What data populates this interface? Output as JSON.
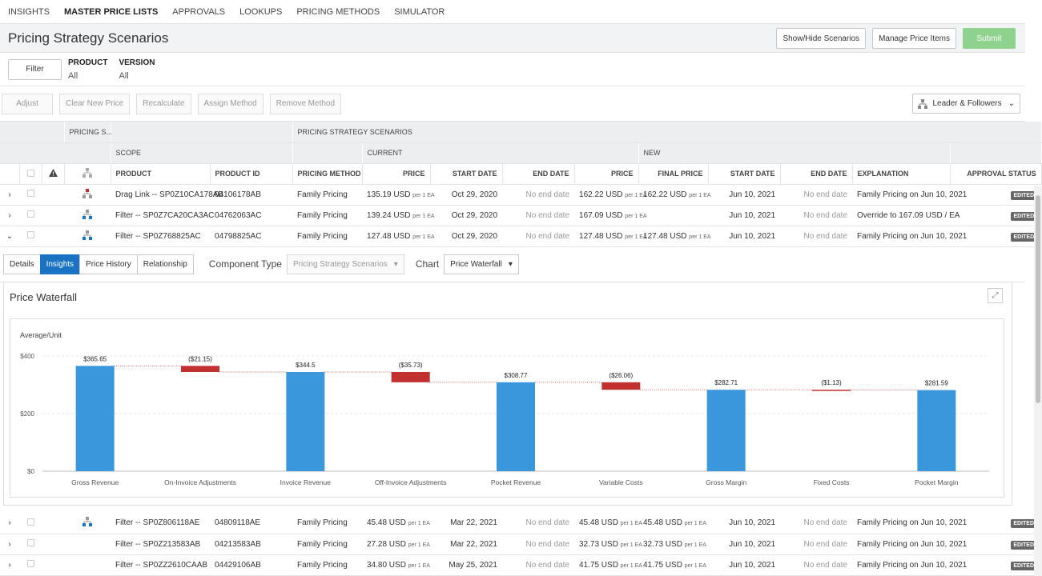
{
  "nav": [
    "INSIGHTS",
    "MASTER PRICE LISTS",
    "APPROVALS",
    "LOOKUPS",
    "PRICING METHODS",
    "SIMULATOR"
  ],
  "page_title": "Pricing Strategy Scenarios",
  "actions": {
    "show_hide": "Show/Hide Scenarios",
    "manage": "Manage Price Items",
    "submit": "Submit"
  },
  "filter": {
    "button": "Filter",
    "product_label": "PRODUCT",
    "product_value": "All",
    "version_label": "VERSION",
    "version_value": "All"
  },
  "toolbar": {
    "adjust": "Adjust",
    "clear": "Clear New Price",
    "recalc": "Recalculate",
    "assign": "Assign Method",
    "remove": "Remove Method",
    "leader": "Leader & Followers"
  },
  "grid": {
    "group1": {
      "pricing_s": "PRICING S...",
      "scenarios": "PRICING STRATEGY SCENARIOS"
    },
    "group2": {
      "scope": "SCOPE",
      "current": "CURRENT",
      "new": "NEW"
    },
    "columns": {
      "product": "PRODUCT",
      "product_id": "PRODUCT ID",
      "method": "PRICING METHOD",
      "price": "PRICE",
      "start": "START DATE",
      "end": "END DATE",
      "new_price": "PRICE",
      "final": "FINAL PRICE",
      "new_start": "START DATE",
      "new_end": "END DATE",
      "explanation": "EXPLANATION",
      "approval": "APPROVAL STATUS"
    },
    "unit": "per 1 EA",
    "badge": "EDITED",
    "rows_top": [
      {
        "product": "Drag Link -- SP0Z10CA178AB",
        "id": "04106178AB",
        "method": "Family Pricing",
        "price": "135.19 USD",
        "start": "Oct 29, 2020",
        "end": "No end date",
        "new_price": "162.22 USD",
        "final": "162.22 USD",
        "new_start": "Jun 10, 2021",
        "new_end": "No end date",
        "explanation": "Family Pricing on Jun 10, 2021",
        "expander": "›",
        "icon": "leader"
      },
      {
        "product": "Filter -- SP0Z7CA20CA3AC",
        "id": "04762063AC",
        "method": "Family Pricing",
        "price": "139.24 USD",
        "start": "Oct 29, 2020",
        "end": "No end date",
        "new_price": "167.09 USD",
        "final": "",
        "new_start": "Jun 10, 2021",
        "new_end": "No end date",
        "explanation": "Override to 167.09 USD / EA",
        "expander": "›",
        "icon": "follower"
      },
      {
        "product": "Filter -- SP0Z768825AC",
        "id": "04798825AC",
        "method": "Family Pricing",
        "price": "127.48 USD",
        "start": "Oct 29, 2020",
        "end": "No end date",
        "new_price": "127.48 USD",
        "final": "127.48 USD",
        "new_start": "Jun 10, 2021",
        "new_end": "No end date",
        "explanation": "Family Pricing on Jun 10, 2021",
        "expander": "⌄",
        "icon": "follower"
      }
    ],
    "rows_bottom": [
      {
        "product": "Filter -- SP0Z806118AE",
        "id": "04809118AE",
        "method": "Family Pricing",
        "price": "45.48 USD",
        "start": "Mar 22, 2021",
        "end": "No end date",
        "new_price": "45.48 USD",
        "final": "45.48 USD",
        "new_start": "Jun 10, 2021",
        "new_end": "No end date",
        "explanation": "Family Pricing on Jun 10, 2021",
        "expander": "›",
        "icon": "follower"
      },
      {
        "product": "Filter -- SP0Z213583AB",
        "id": "04213583AB",
        "method": "Family Pricing",
        "price": "27.28 USD",
        "start": "Mar 22, 2021",
        "end": "No end date",
        "new_price": "32.73 USD",
        "final": "32.73 USD",
        "new_start": "Jun 10, 2021",
        "new_end": "No end date",
        "explanation": "Family Pricing on Jun 10, 2021",
        "expander": "›",
        "icon": ""
      },
      {
        "product": "Filter -- SP0ZZ2610CAAB",
        "id": "04429106AB",
        "method": "Family Pricing",
        "price": "34.80 USD",
        "start": "May 25, 2021",
        "end": "No end date",
        "new_price": "41.75 USD",
        "final": "41.75 USD",
        "new_start": "Jun 10, 2021",
        "new_end": "No end date",
        "explanation": "Family Pricing on Jun 10, 2021",
        "expander": "›",
        "icon": ""
      }
    ]
  },
  "detail": {
    "tabs": [
      "Details",
      "Insights",
      "Price History",
      "Relationship"
    ],
    "component_label": "Component Type",
    "component_value": "Pricing Strategy Scenarios",
    "chart_label": "Chart",
    "chart_value": "Price Waterfall",
    "panel_title": "Price Waterfall"
  },
  "colors": {
    "positive": "#3a97dc",
    "negative": "#c0302e",
    "accent": "#1a73c2"
  },
  "chart_data": {
    "type": "bar",
    "subtype": "waterfall",
    "title": "Price Waterfall",
    "ylabel": "Average/Unit",
    "ylim": [
      0,
      400
    ],
    "yticks": [
      {
        "v": 0,
        "label": "$0"
      },
      {
        "v": 200,
        "label": "$200"
      },
      {
        "v": 400,
        "label": "$400"
      }
    ],
    "grid": true,
    "steps": [
      {
        "category": "Gross Revenue",
        "kind": "total",
        "start": 0,
        "end": 365.65,
        "label": "$365.65"
      },
      {
        "category": "On-Invoice Adjustments",
        "kind": "delta",
        "start": 365.65,
        "end": 344.5,
        "label": "($21.15)"
      },
      {
        "category": "Invoice Revenue",
        "kind": "total",
        "start": 0,
        "end": 344.5,
        "label": "$344.5"
      },
      {
        "category": "Off-Invoice Adjustments",
        "kind": "delta",
        "start": 344.5,
        "end": 308.77,
        "label": "($35.73)"
      },
      {
        "category": "Pocket Revenue",
        "kind": "total",
        "start": 0,
        "end": 308.77,
        "label": "$308.77"
      },
      {
        "category": "Variable Costs",
        "kind": "delta",
        "start": 308.77,
        "end": 282.71,
        "label": "($26.06)"
      },
      {
        "category": "Gross Margin",
        "kind": "total",
        "start": 0,
        "end": 282.71,
        "label": "$282.71"
      },
      {
        "category": "Fixed Costs",
        "kind": "delta",
        "start": 282.71,
        "end": 281.59,
        "label": "($1.13)"
      },
      {
        "category": "Pocket Margin",
        "kind": "total",
        "start": 0,
        "end": 281.59,
        "label": "$281.59"
      }
    ]
  }
}
